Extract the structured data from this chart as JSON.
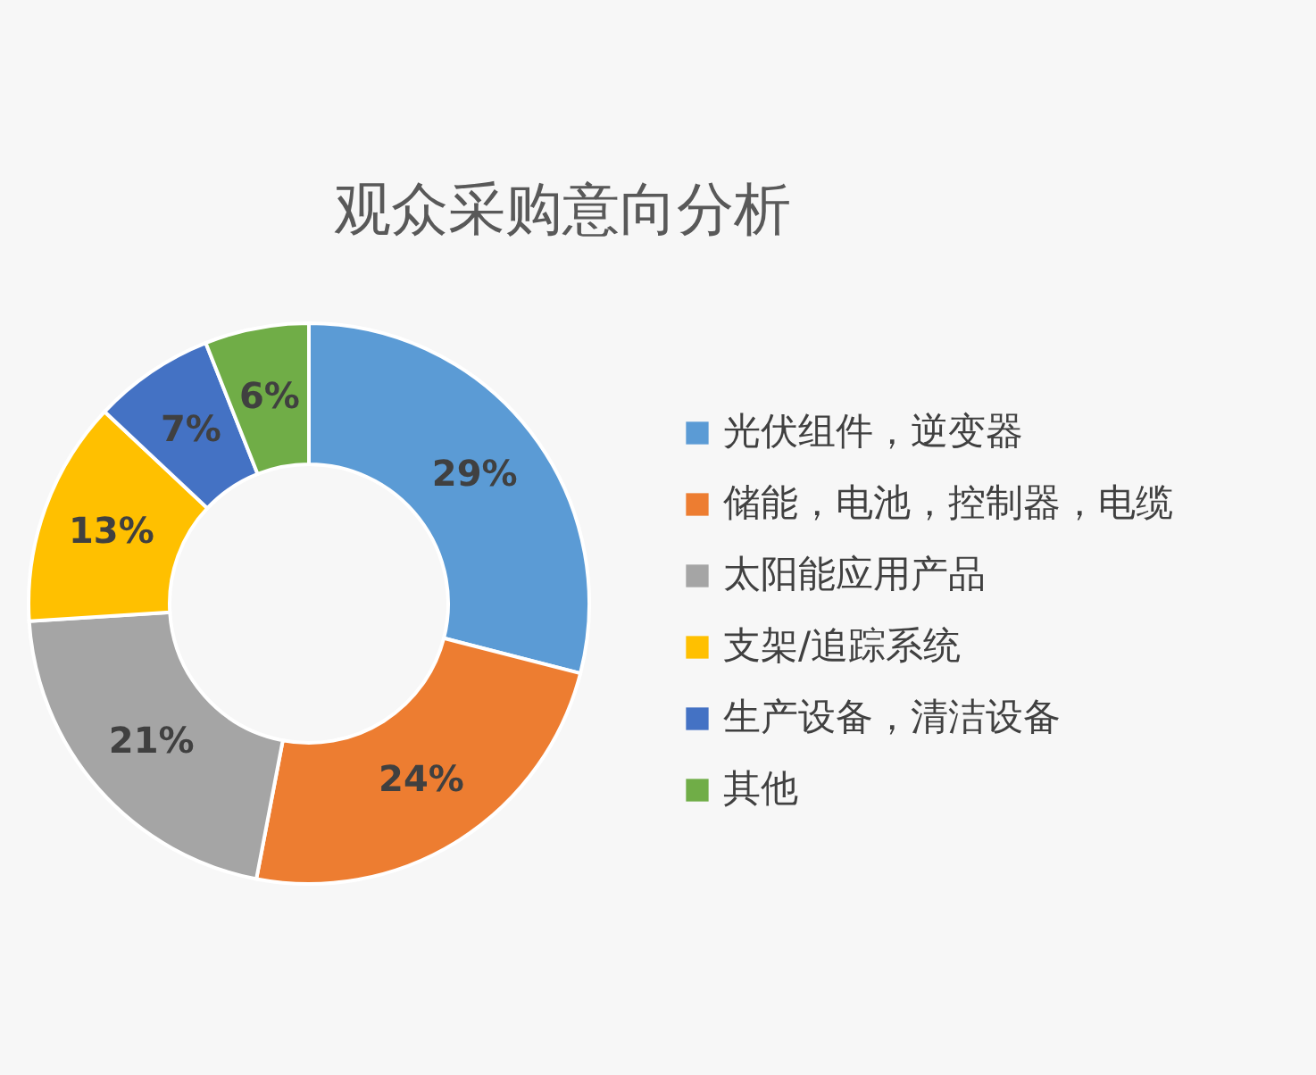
{
  "chart_data": {
    "type": "donut",
    "title": "观众采购意向分析",
    "categories": [
      "光伏组件，逆变器",
      "储能，电池，控制器，电缆",
      "太阳能应用产品",
      "支架/追踪系统",
      "生产设备，清洁设备",
      "其他"
    ],
    "values": [
      29,
      24,
      21,
      13,
      7,
      6
    ],
    "colors": [
      "#5b9bd5",
      "#ed7d31",
      "#a5a5a5",
      "#ffc000",
      "#4472c4",
      "#70ad47"
    ],
    "value_labels": [
      "29%",
      "24%",
      "21%",
      "13%",
      "7%",
      "6%"
    ],
    "legend": "right"
  }
}
